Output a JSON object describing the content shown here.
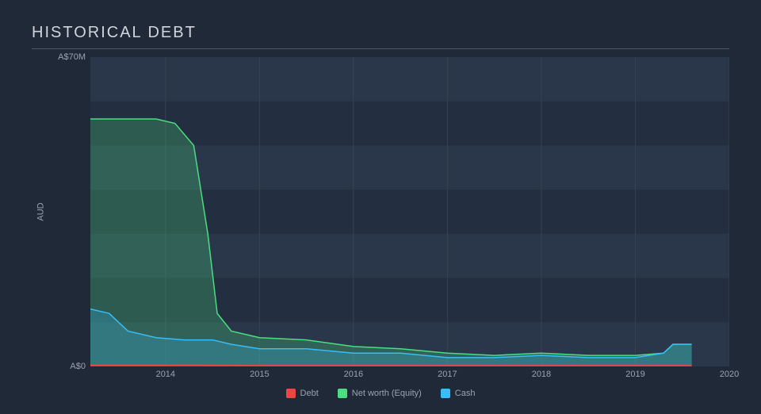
{
  "chart": {
    "type": "area",
    "title": "HISTORICAL DEBT",
    "background_color": "#1f2937",
    "plot_background": "#232f41",
    "plot_band_color": "#2a374a",
    "text_color": "#9ca3af",
    "title_color": "#d1d5db",
    "title_fontsize": 20,
    "label_fontsize": 11,
    "x": {
      "min": 2013.2,
      "max": 2020,
      "ticks": [
        2014,
        2015,
        2016,
        2017,
        2018,
        2019,
        2020
      ]
    },
    "y": {
      "label": "AUD",
      "min": 0,
      "max": 70,
      "ticks": [
        {
          "value": 0,
          "label": "A$0"
        },
        {
          "value": 70,
          "label": "A$70M"
        }
      ],
      "bands": [
        [
          60,
          70
        ],
        [
          40,
          50
        ],
        [
          20,
          30
        ],
        [
          0,
          10
        ]
      ]
    },
    "series": [
      {
        "name": "Debt",
        "color": "#ef4444",
        "fill_opacity": 0.25,
        "line_width": 1.5,
        "points": [
          [
            2013.2,
            0.3
          ],
          [
            2014,
            0.3
          ],
          [
            2015,
            0.2
          ],
          [
            2016,
            0.2
          ],
          [
            2017,
            0.2
          ],
          [
            2018,
            0.2
          ],
          [
            2019,
            0.2
          ],
          [
            2019.6,
            0.2
          ]
        ]
      },
      {
        "name": "Net worth (Equity)",
        "color": "#4ade80",
        "fill_opacity": 0.25,
        "line_width": 1.5,
        "points": [
          [
            2013.2,
            56
          ],
          [
            2013.5,
            56
          ],
          [
            2013.9,
            56
          ],
          [
            2014.1,
            55
          ],
          [
            2014.3,
            50
          ],
          [
            2014.45,
            30
          ],
          [
            2014.55,
            12
          ],
          [
            2014.7,
            8
          ],
          [
            2015,
            6.5
          ],
          [
            2015.5,
            6
          ],
          [
            2016,
            4.5
          ],
          [
            2016.5,
            4
          ],
          [
            2017,
            3
          ],
          [
            2017.5,
            2.5
          ],
          [
            2018,
            3
          ],
          [
            2018.5,
            2.5
          ],
          [
            2019,
            2.5
          ],
          [
            2019.3,
            3
          ],
          [
            2019.4,
            5
          ],
          [
            2019.6,
            5
          ]
        ]
      },
      {
        "name": "Cash",
        "color": "#38bdf8",
        "fill_opacity": 0.25,
        "line_width": 1.5,
        "points": [
          [
            2013.2,
            13
          ],
          [
            2013.4,
            12
          ],
          [
            2013.6,
            8
          ],
          [
            2013.9,
            6.5
          ],
          [
            2014.2,
            6
          ],
          [
            2014.5,
            6
          ],
          [
            2014.7,
            5
          ],
          [
            2015,
            4
          ],
          [
            2015.5,
            4
          ],
          [
            2016,
            3
          ],
          [
            2016.5,
            3
          ],
          [
            2017,
            2
          ],
          [
            2017.5,
            2
          ],
          [
            2018,
            2.5
          ],
          [
            2018.5,
            2
          ],
          [
            2019,
            2
          ],
          [
            2019.3,
            3
          ],
          [
            2019.4,
            5
          ],
          [
            2019.6,
            5
          ]
        ]
      }
    ],
    "legend": {
      "items": [
        "Debt",
        "Net worth (Equity)",
        "Cash"
      ]
    }
  }
}
